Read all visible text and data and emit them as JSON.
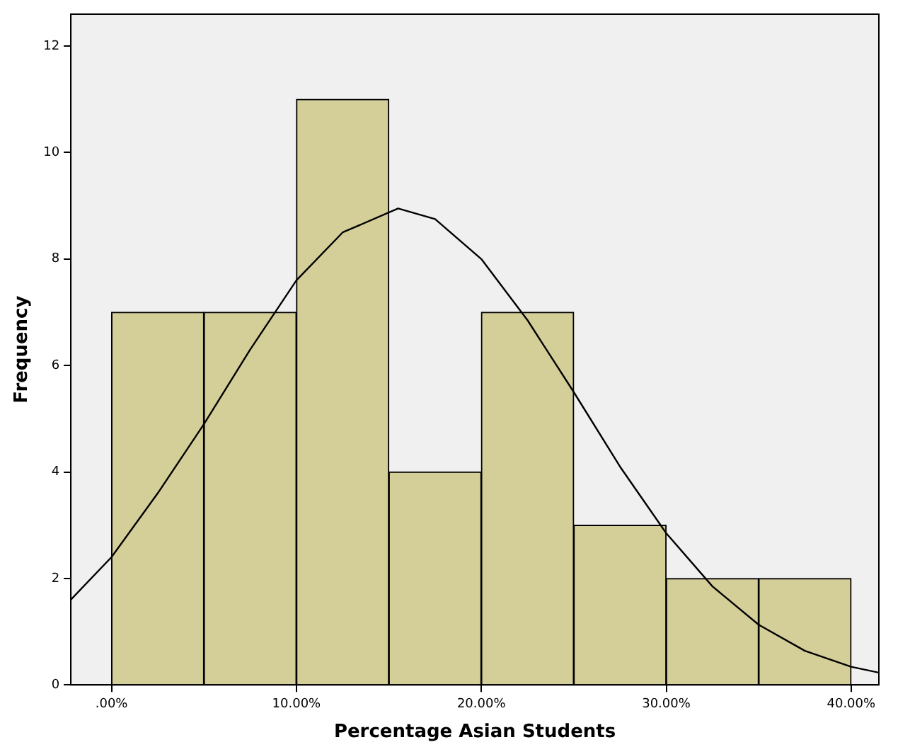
{
  "chart_data": {
    "type": "histogram",
    "xlabel": "Percentage Asian Students",
    "ylabel": "Frequency",
    "bins": [
      0,
      5,
      10,
      15,
      20,
      25,
      30,
      35,
      40
    ],
    "values": [
      7,
      7,
      11,
      4,
      7,
      3,
      2,
      2
    ],
    "color": "#d4ce98",
    "series": [
      {
        "type": "line",
        "color": "#000000",
        "x": [
          -2.2,
          0,
          2.5,
          5,
          7.5,
          10,
          12.5,
          15.5,
          17.5,
          20,
          22.5,
          25,
          27.5,
          30,
          32.5,
          35,
          37.5,
          40,
          41.5
        ],
        "values": [
          1.6,
          2.4,
          3.6,
          4.9,
          6.3,
          7.6,
          8.5,
          8.95,
          8.75,
          8.0,
          6.85,
          5.5,
          4.1,
          2.85,
          1.85,
          1.13,
          0.64,
          0.34,
          0.23
        ]
      }
    ],
    "marker": "none",
    "xlim": [
      -2.2,
      41.5
    ],
    "ylim": [
      0,
      12.6
    ],
    "xticks": [
      {
        "value": 0,
        "label": ".00%"
      },
      {
        "value": 10,
        "label": "10.00%"
      },
      {
        "value": 20,
        "label": "20.00%"
      },
      {
        "value": 30,
        "label": "30.00%"
      },
      {
        "value": 40,
        "label": "40.00%"
      }
    ],
    "yticks": [
      0,
      2,
      4,
      6,
      8,
      10,
      12
    ]
  }
}
